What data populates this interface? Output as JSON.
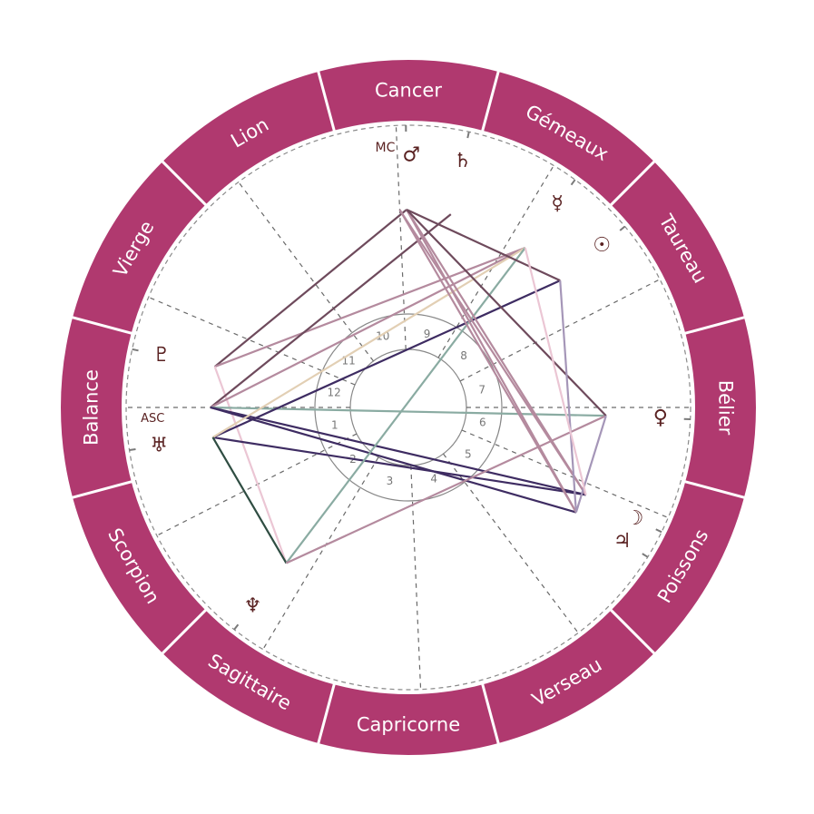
{
  "chart": {
    "ring_color": "#b0396f",
    "glyph_color": "#5a2222",
    "ascendant_longitude": 195,
    "signs": [
      {
        "name": "Bélier",
        "start": 0
      },
      {
        "name": "Taureau",
        "start": 30
      },
      {
        "name": "Gémeaux",
        "start": 60
      },
      {
        "name": "Cancer",
        "start": 90
      },
      {
        "name": "Lion",
        "start": 120
      },
      {
        "name": "Vierge",
        "start": 150
      },
      {
        "name": "Balance",
        "start": 180
      },
      {
        "name": "Scorpion",
        "start": 210
      },
      {
        "name": "Sagittaire",
        "start": 240
      },
      {
        "name": "Capricorne",
        "start": 270
      },
      {
        "name": "Verseau",
        "start": 300
      },
      {
        "name": "Poissons",
        "start": 330
      }
    ],
    "houses": [
      {
        "number": "1",
        "cusp": 195
      },
      {
        "number": "2",
        "cusp": 222
      },
      {
        "number": "3",
        "cusp": 254
      },
      {
        "number": "4",
        "cusp": 287.5
      },
      {
        "number": "5",
        "cusp": 322
      },
      {
        "number": "6",
        "cusp": 352
      },
      {
        "number": "7",
        "cusp": 15
      },
      {
        "number": "8",
        "cusp": 42
      },
      {
        "number": "9",
        "cusp": 74
      },
      {
        "number": "10",
        "cusp": 107.5
      },
      {
        "number": "11",
        "cusp": 142
      },
      {
        "number": "12",
        "cusp": 172
      }
    ],
    "points": [
      {
        "id": "asc",
        "label": "ASC",
        "icon": "ascendant-label",
        "longitude": 195
      },
      {
        "id": "mc",
        "label": "MC",
        "icon": "midheaven-label",
        "longitude": 107.5
      },
      {
        "id": "mars",
        "label": "♂",
        "icon": "mars-icon",
        "longitude": 105.5
      },
      {
        "id": "saturn",
        "label": "♄",
        "icon": "saturn-icon",
        "longitude": 92.6
      },
      {
        "id": "mercury",
        "label": "☿",
        "icon": "mercury-icon",
        "longitude": 68.8
      },
      {
        "id": "sun",
        "label": "☉",
        "icon": "sun-icon",
        "longitude": 54.9
      },
      {
        "id": "venus",
        "label": "♀",
        "icon": "venus-icon",
        "longitude": 12.6
      },
      {
        "id": "moon",
        "label": "☽",
        "icon": "moon-icon",
        "longitude": 348.8
      },
      {
        "id": "jupiter",
        "label": "♃",
        "icon": "jupiter-icon",
        "longitude": 343
      },
      {
        "id": "neptune",
        "label": "♆",
        "icon": "neptune-icon",
        "longitude": 246.9
      },
      {
        "id": "uranus",
        "label": "♅",
        "icon": "uranus-icon",
        "longitude": 203.7
      },
      {
        "id": "pluto",
        "label": "♇",
        "icon": "pluto-icon",
        "longitude": 183.1
      }
    ],
    "aspects": [
      {
        "from": "pluto",
        "to": "mars",
        "color": "#6e4a5c"
      },
      {
        "from": "pluto",
        "to": "mercury",
        "color": "#b48a9e"
      },
      {
        "from": "pluto",
        "to": "neptune",
        "color": "#ebc6d4"
      },
      {
        "from": "asc",
        "to": "saturn",
        "color": "#6e4a5c"
      },
      {
        "from": "asc",
        "to": "mercury",
        "color": "#b48a9e"
      },
      {
        "from": "asc",
        "to": "venus",
        "color": "#8aaba2"
      },
      {
        "from": "asc",
        "to": "moon",
        "color": "#3e2c62"
      },
      {
        "from": "asc",
        "to": "jupiter",
        "color": "#3e2c62"
      },
      {
        "from": "uranus",
        "to": "moon",
        "color": "#3e2c62"
      },
      {
        "from": "uranus",
        "to": "sun",
        "color": "#3e2c62"
      },
      {
        "from": "uranus",
        "to": "mercury",
        "color": "#e2cfb4"
      },
      {
        "from": "uranus",
        "to": "neptune",
        "color": "#2f4d42"
      },
      {
        "from": "neptune",
        "to": "mercury",
        "color": "#8aaba2"
      },
      {
        "from": "neptune",
        "to": "venus",
        "color": "#b48a9e"
      },
      {
        "from": "mars",
        "to": "moon",
        "color": "#b48a9e"
      },
      {
        "from": "mars",
        "to": "jupiter",
        "color": "#b48a9e"
      },
      {
        "from": "mc",
        "to": "moon",
        "color": "#b48a9e"
      },
      {
        "from": "mc",
        "to": "jupiter",
        "color": "#b48a9e"
      },
      {
        "from": "mars",
        "to": "sun",
        "color": "#6e4a5c"
      },
      {
        "from": "mars",
        "to": "venus",
        "color": "#6e4a5c"
      },
      {
        "from": "sun",
        "to": "jupiter",
        "color": "#a596b8"
      },
      {
        "from": "venus",
        "to": "jupiter",
        "color": "#a596b8"
      },
      {
        "from": "mercury",
        "to": "moon",
        "color": "#ebc6d4"
      }
    ]
  }
}
